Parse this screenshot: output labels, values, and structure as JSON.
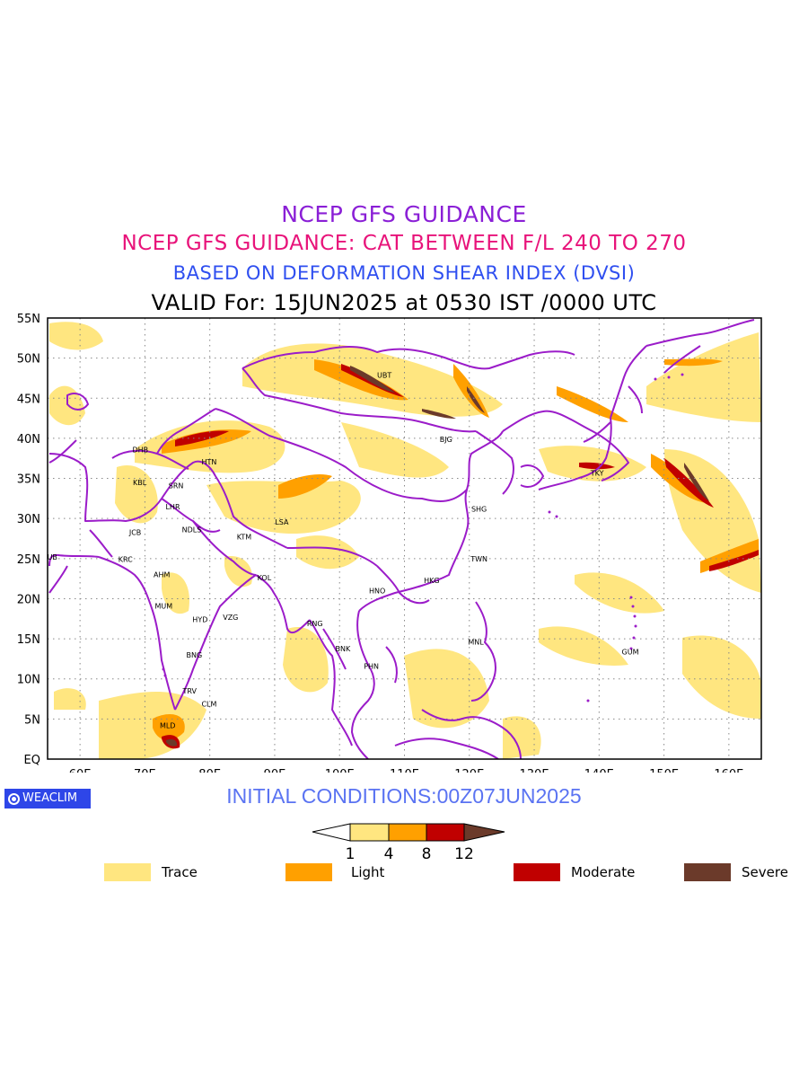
{
  "titles": {
    "line1": "NCEP GFS GUIDANCE",
    "line2": "NCEP GFS GUIDANCE: CAT BETWEEN F/L 240 TO 270",
    "line3": "BASED ON DEFORMATION SHEAR INDEX (DVSI)",
    "line4": "VALID For: 15JUN2025 at 0530 IST /0000 UTC"
  },
  "map": {
    "lat_labels": [
      "55N",
      "50N",
      "45N",
      "40N",
      "35N",
      "30N",
      "25N",
      "20N",
      "15N",
      "10N",
      "5N",
      "EQ"
    ],
    "lon_labels": [
      "60E",
      "70E",
      "80E",
      "90E",
      "100E",
      "110E",
      "120E",
      "130E",
      "140E",
      "150E",
      "160E"
    ],
    "lat_range": [
      0,
      55
    ],
    "lon_range": [
      55,
      165
    ],
    "grid": "dotted",
    "stations": [
      {
        "code": "UBT",
        "lon": 106.9,
        "lat": 47.9
      },
      {
        "code": "BJG",
        "lon": 116.4,
        "lat": 39.9
      },
      {
        "code": "DHB",
        "lon": 69.3,
        "lat": 38.6
      },
      {
        "code": "HTN",
        "lon": 79.9,
        "lat": 37.1
      },
      {
        "code": "KBL",
        "lon": 69.2,
        "lat": 34.5
      },
      {
        "code": "SRN",
        "lon": 74.8,
        "lat": 34.1
      },
      {
        "code": "LHR",
        "lon": 74.3,
        "lat": 31.5
      },
      {
        "code": "TKY",
        "lon": 139.7,
        "lat": 35.7
      },
      {
        "code": "SHG",
        "lon": 121.5,
        "lat": 31.2
      },
      {
        "code": "LSA",
        "lon": 91.1,
        "lat": 29.6
      },
      {
        "code": "JCB",
        "lon": 68.5,
        "lat": 28.3
      },
      {
        "code": "NDLS",
        "lon": 77.2,
        "lat": 28.6
      },
      {
        "code": "KTM",
        "lon": 85.3,
        "lat": 27.7
      },
      {
        "code": "DUB",
        "lon": 55.3,
        "lat": 25.2
      },
      {
        "code": "KRC",
        "lon": 67.0,
        "lat": 24.9
      },
      {
        "code": "TWN",
        "lon": 121.5,
        "lat": 25.0
      },
      {
        "code": "AHM",
        "lon": 72.6,
        "lat": 23.0
      },
      {
        "code": "KOL",
        "lon": 88.4,
        "lat": 22.6
      },
      {
        "code": "HKG",
        "lon": 114.2,
        "lat": 22.3
      },
      {
        "code": "HNO",
        "lon": 105.8,
        "lat": 21.0
      },
      {
        "code": "MUM",
        "lon": 72.9,
        "lat": 19.1
      },
      {
        "code": "HYD",
        "lon": 78.5,
        "lat": 17.4
      },
      {
        "code": "VZG",
        "lon": 83.2,
        "lat": 17.7
      },
      {
        "code": "RNG",
        "lon": 96.2,
        "lat": 16.9
      },
      {
        "code": "MNL",
        "lon": 121.0,
        "lat": 14.6
      },
      {
        "code": "GUM",
        "lon": 144.8,
        "lat": 13.4
      },
      {
        "code": "BNK",
        "lon": 100.5,
        "lat": 13.8
      },
      {
        "code": "BNG",
        "lon": 77.6,
        "lat": 13.0
      },
      {
        "code": "PHN",
        "lon": 104.9,
        "lat": 11.6
      },
      {
        "code": "TRV",
        "lon": 76.9,
        "lat": 8.5
      },
      {
        "code": "CLM",
        "lon": 79.9,
        "lat": 6.9
      },
      {
        "code": "MLD",
        "lon": 73.5,
        "lat": 4.2
      }
    ]
  },
  "footer": {
    "logo": "WEACLIM",
    "initial_conditions": "INITIAL CONDITIONS:00Z07JUN2025"
  },
  "colorbar": {
    "ticks": [
      "1",
      "4",
      "8",
      "12"
    ],
    "colors": [
      "#ffffff",
      "#ffe680",
      "#ffa000",
      "#c00000",
      "#6b3a2a"
    ]
  },
  "legend": [
    {
      "label": "Trace",
      "color": "#ffe680"
    },
    {
      "label": "Light",
      "color": "#ffa000"
    },
    {
      "label": "Moderate",
      "color": "#c00000"
    },
    {
      "label": "Severe",
      "color": "#6b3a2a"
    }
  ],
  "colors": {
    "border": "#9b1cc9",
    "title1": "#8a1fd6",
    "title2": "#e8137a",
    "title3": "#2f4ff0"
  }
}
